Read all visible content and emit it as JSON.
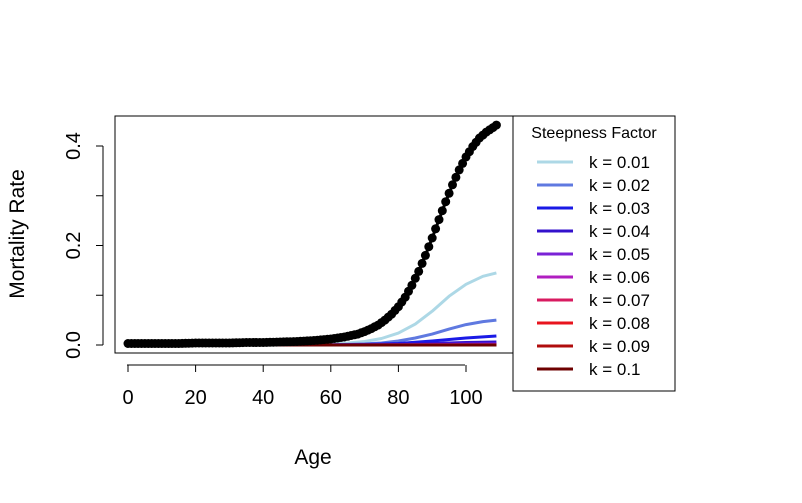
{
  "chart_data": {
    "type": "line",
    "title": "",
    "xlabel": "Age",
    "ylabel": "Mortality Rate",
    "xlim": [
      0,
      110
    ],
    "ylim": [
      0,
      0.44
    ],
    "x_ticks": [
      0,
      20,
      40,
      60,
      80,
      100
    ],
    "x_tick_labels": [
      "0",
      "20",
      "40",
      "60",
      "80",
      "100"
    ],
    "y_ticks": [
      0.0,
      0.2,
      0.4
    ],
    "y_tick_labels": [
      "0.0",
      "0.2",
      "0.4"
    ],
    "grid": false,
    "legend": {
      "title": "Steepness Factor",
      "placement": "right"
    },
    "series": [
      {
        "name": "k = 0.01",
        "color": "#add8e6",
        "values_x": [
          0,
          20,
          40,
          50,
          60,
          65,
          70,
          75,
          80,
          85,
          90,
          95,
          100,
          105,
          109
        ],
        "values_y": [
          0.0,
          0.0,
          0.0003,
          0.0008,
          0.002,
          0.004,
          0.007,
          0.013,
          0.024,
          0.042,
          0.068,
          0.098,
          0.122,
          0.138,
          0.145
        ]
      },
      {
        "name": "k = 0.02",
        "color": "#5f79e0",
        "values_x": [
          0,
          20,
          40,
          50,
          60,
          65,
          70,
          75,
          80,
          85,
          90,
          95,
          100,
          105,
          109
        ],
        "values_y": [
          0.0,
          0.0,
          0.0001,
          0.0003,
          0.0007,
          0.0012,
          0.0022,
          0.004,
          0.008,
          0.014,
          0.022,
          0.032,
          0.041,
          0.047,
          0.05
        ]
      },
      {
        "name": "k = 0.03",
        "color": "#1a1ae6",
        "values_x": [
          0,
          40,
          60,
          70,
          80,
          90,
          100,
          109
        ],
        "values_y": [
          0.0,
          0.0001,
          0.0003,
          0.001,
          0.003,
          0.008,
          0.014,
          0.018
        ]
      },
      {
        "name": "k = 0.04",
        "color": "#3311cc",
        "values_x": [
          0,
          40,
          60,
          70,
          80,
          90,
          100,
          109
        ],
        "values_y": [
          0.0,
          0.0,
          0.0001,
          0.0004,
          0.0012,
          0.003,
          0.005,
          0.006
        ]
      },
      {
        "name": "k = 0.05",
        "color": "#7a22d6",
        "values_x": [
          0,
          60,
          80,
          100,
          109
        ],
        "values_y": [
          0.0,
          0.0001,
          0.0005,
          0.0018,
          0.0022
        ]
      },
      {
        "name": "k = 0.06",
        "color": "#b01ec0",
        "values_x": [
          0,
          60,
          80,
          100,
          109
        ],
        "values_y": [
          0.0,
          0.0,
          0.0002,
          0.0007,
          0.0008
        ]
      },
      {
        "name": "k = 0.07",
        "color": "#d81b60",
        "values_x": [
          0,
          109
        ],
        "values_y": [
          0.0,
          0.0003
        ]
      },
      {
        "name": "k = 0.08",
        "color": "#e8141e",
        "values_x": [
          0,
          109
        ],
        "values_y": [
          0.0,
          0.0001
        ]
      },
      {
        "name": "k = 0.09",
        "color": "#b00d0d",
        "values_x": [
          0,
          109
        ],
        "values_y": [
          0.0,
          0.0
        ]
      },
      {
        "name": "k = 0.1",
        "color": "#6e0000",
        "values_x": [
          0,
          109
        ],
        "values_y": [
          0.0,
          0.0
        ]
      }
    ],
    "observed": {
      "color": "#000000",
      "values_x": [
        0,
        5,
        10,
        15,
        20,
        25,
        30,
        35,
        40,
        45,
        50,
        55,
        60,
        62,
        64,
        66,
        68,
        70,
        72,
        74,
        76,
        78,
        80,
        82,
        84,
        86,
        88,
        90,
        92,
        94,
        96,
        98,
        100,
        102,
        104,
        106,
        108,
        109
      ],
      "values_y": [
        0.003,
        0.003,
        0.003,
        0.003,
        0.004,
        0.004,
        0.004,
        0.005,
        0.005,
        0.006,
        0.007,
        0.009,
        0.012,
        0.014,
        0.016,
        0.019,
        0.022,
        0.027,
        0.033,
        0.04,
        0.05,
        0.062,
        0.077,
        0.096,
        0.12,
        0.148,
        0.18,
        0.215,
        0.252,
        0.288,
        0.322,
        0.352,
        0.378,
        0.399,
        0.416,
        0.428,
        0.437,
        0.442
      ]
    }
  }
}
